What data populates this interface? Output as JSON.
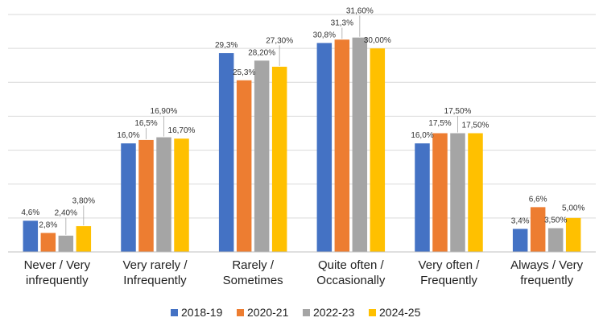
{
  "chart_data": {
    "type": "bar",
    "categories": [
      [
        "Never / Very",
        "infrequently"
      ],
      [
        "Very rarely /",
        "Infrequently"
      ],
      [
        "Rarely /",
        "Sometimes"
      ],
      [
        "Quite often /",
        "Occasionally"
      ],
      [
        "Very often /",
        "Frequently"
      ],
      [
        "Always / Very",
        "frequently"
      ]
    ],
    "series": [
      {
        "name": "2018-19",
        "color": "#4472C4",
        "values": [
          4.6,
          16.0,
          29.3,
          30.8,
          16.0,
          3.4
        ],
        "labels": [
          "4,6%",
          "16,0%",
          "29,3%",
          "30,8%",
          "16,0%",
          "3,4%"
        ]
      },
      {
        "name": "2020-21",
        "color": "#ED7D31",
        "values": [
          2.8,
          16.5,
          25.3,
          31.3,
          17.5,
          6.6
        ],
        "labels": [
          "2,8%",
          "16,5%",
          "25,3%",
          "31,3%",
          "17,5%",
          "6,6%"
        ]
      },
      {
        "name": "2022-23",
        "color": "#A5A5A5",
        "values": [
          2.4,
          16.9,
          28.2,
          31.6,
          17.5,
          3.5
        ],
        "labels": [
          "2,40%",
          "16,90%",
          "28,20%",
          "31,60%",
          "17,50%",
          "3,50%"
        ]
      },
      {
        "name": "2024-25",
        "color": "#FFC000",
        "values": [
          3.8,
          16.7,
          27.3,
          30.0,
          17.5,
          5.0
        ],
        "labels": [
          "3,80%",
          "16,70%",
          "27,30%",
          "30,00%",
          "17,50%",
          "5,00%"
        ]
      }
    ],
    "title": "",
    "xlabel": "",
    "ylabel": "",
    "ylim": [
      0,
      35
    ],
    "grid": true,
    "y_tick_labels_shown": false,
    "legend_position": "bottom"
  }
}
